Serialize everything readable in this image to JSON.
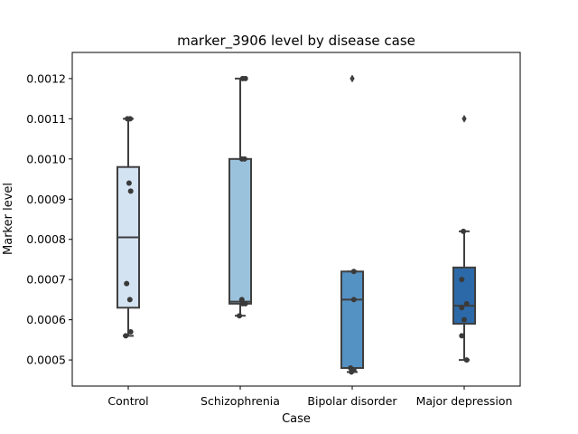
{
  "chart_data": {
    "type": "box",
    "title": "marker_3906 level by disease case",
    "xlabel": "Case",
    "ylabel": "Marker level",
    "ylim": [
      0.000435,
      0.001265
    ],
    "yticks": [
      {
        "value": 0.0005,
        "label": "0.0005"
      },
      {
        "value": 0.0006,
        "label": "0.0006"
      },
      {
        "value": 0.0007,
        "label": "0.0007"
      },
      {
        "value": 0.0008,
        "label": "0.0008"
      },
      {
        "value": 0.0009,
        "label": "0.0009"
      },
      {
        "value": 0.001,
        "label": "0.0010"
      },
      {
        "value": 0.0011,
        "label": "0.0011"
      },
      {
        "value": 0.0012,
        "label": "0.0012"
      }
    ],
    "grid": false,
    "categories": [
      "Control",
      "Schizophrenia",
      "Bipolar disorder",
      "Major depression"
    ],
    "boxes": [
      {
        "category": "Control",
        "color": "#d3e3f2",
        "q1": 0.00063,
        "median": 0.000805,
        "q3": 0.00098,
        "whisker_low": 0.00056,
        "whisker_high": 0.0011,
        "outliers": [],
        "points": [
          0.0011,
          0.0011,
          0.00094,
          0.00092,
          0.00069,
          0.00065,
          0.00057,
          0.00056
        ]
      },
      {
        "category": "Schizophrenia",
        "color": "#9bc2dc",
        "q1": 0.00064,
        "median": 0.000645,
        "q3": 0.001,
        "whisker_low": 0.00061,
        "whisker_high": 0.0012,
        "outliers": [],
        "points": [
          0.0012,
          0.0012,
          0.001,
          0.001,
          0.00065,
          0.00064,
          0.00064,
          0.00061
        ]
      },
      {
        "category": "Bipolar disorder",
        "color": "#5592c4",
        "q1": 0.00048,
        "median": 0.00065,
        "q3": 0.00072,
        "whisker_low": 0.00047,
        "whisker_high": 0.00072,
        "outliers": [
          0.0012
        ],
        "points": [
          0.00072,
          0.00065,
          0.00048,
          0.000475,
          0.00047
        ]
      },
      {
        "category": "Major depression",
        "color": "#2c69a8",
        "q1": 0.00059,
        "median": 0.000635,
        "q3": 0.00073,
        "whisker_low": 0.0005,
        "whisker_high": 0.00082,
        "outliers": [
          0.0011
        ],
        "points": [
          0.00082,
          0.0007,
          0.00064,
          0.00063,
          0.0006,
          0.00056,
          0.0005
        ]
      }
    ]
  }
}
